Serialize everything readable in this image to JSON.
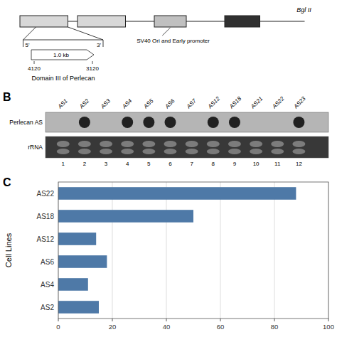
{
  "chart_data": [
    {
      "type": "diagram",
      "annotations": [
        "5'",
        "3'",
        "1.0 kb",
        "4120",
        "3120",
        "Domain III of Perlecan",
        "SV40 Ori and Early promoter",
        "Bgl II"
      ]
    },
    {
      "type": "blot",
      "title": "B",
      "categories": [
        "AS1",
        "AS2",
        "AS3",
        "AS4",
        "AS5",
        "AS6",
        "AS7",
        "AS12",
        "AS18",
        "AS21",
        "AS22",
        "AS23"
      ],
      "lane_labels": [
        "1",
        "2",
        "3",
        "4",
        "5",
        "6",
        "7",
        "8",
        "9",
        "10",
        "11",
        "12"
      ],
      "row_labels": [
        "Perlecan AS",
        "rRNA"
      ],
      "band_lanes": [
        1,
        3,
        4,
        5,
        7,
        8,
        11
      ]
    },
    {
      "type": "bar",
      "title": "C",
      "orientation": "horizontal",
      "categories": [
        "AS2",
        "AS4",
        "AS6",
        "AS12",
        "AS18",
        "AS22"
      ],
      "values": [
        15,
        11,
        18,
        14,
        50,
        88
      ],
      "color": "#4e79a7",
      "y_label": "Cell Lines",
      "xlim": [
        0,
        100
      ],
      "xticks": [
        0,
        20,
        40,
        60,
        80,
        100
      ],
      "grid": true
    }
  ]
}
